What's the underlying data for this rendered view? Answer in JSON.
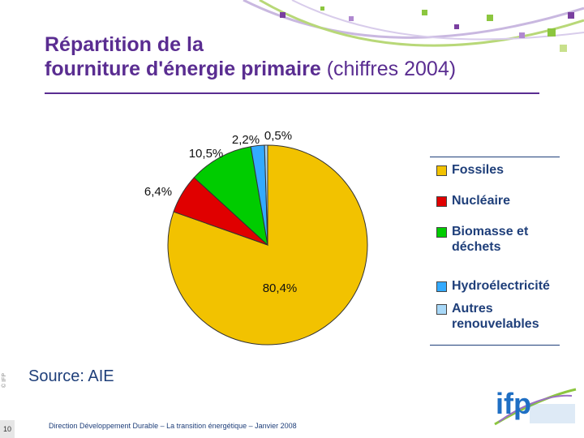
{
  "title": {
    "main_line1": "Répartition de la",
    "main_line2": "fourniture d'énergie primaire",
    "suffix": "(chiffres 2004)"
  },
  "chart_data": {
    "type": "pie",
    "title": "",
    "categories": [
      "Fossiles",
      "Nucléaire",
      "Biomasse et déchets",
      "Hydroélectricité",
      "Autres renouvelables"
    ],
    "values": [
      80.4,
      6.4,
      10.5,
      2.2,
      0.5
    ],
    "data_labels": [
      "80,4%",
      "6,4%",
      "10,5%",
      "2,2%",
      "0,5%"
    ],
    "colors": [
      "#f2c200",
      "#e00000",
      "#00cc00",
      "#33aaff",
      "#a8d8f8"
    ],
    "legend_position": "right"
  },
  "source": "Source: AIE",
  "copyright": "© IFP",
  "page_number": "10",
  "footer": "Direction Développement Durable – La transition énergétique – Janvier 2008"
}
